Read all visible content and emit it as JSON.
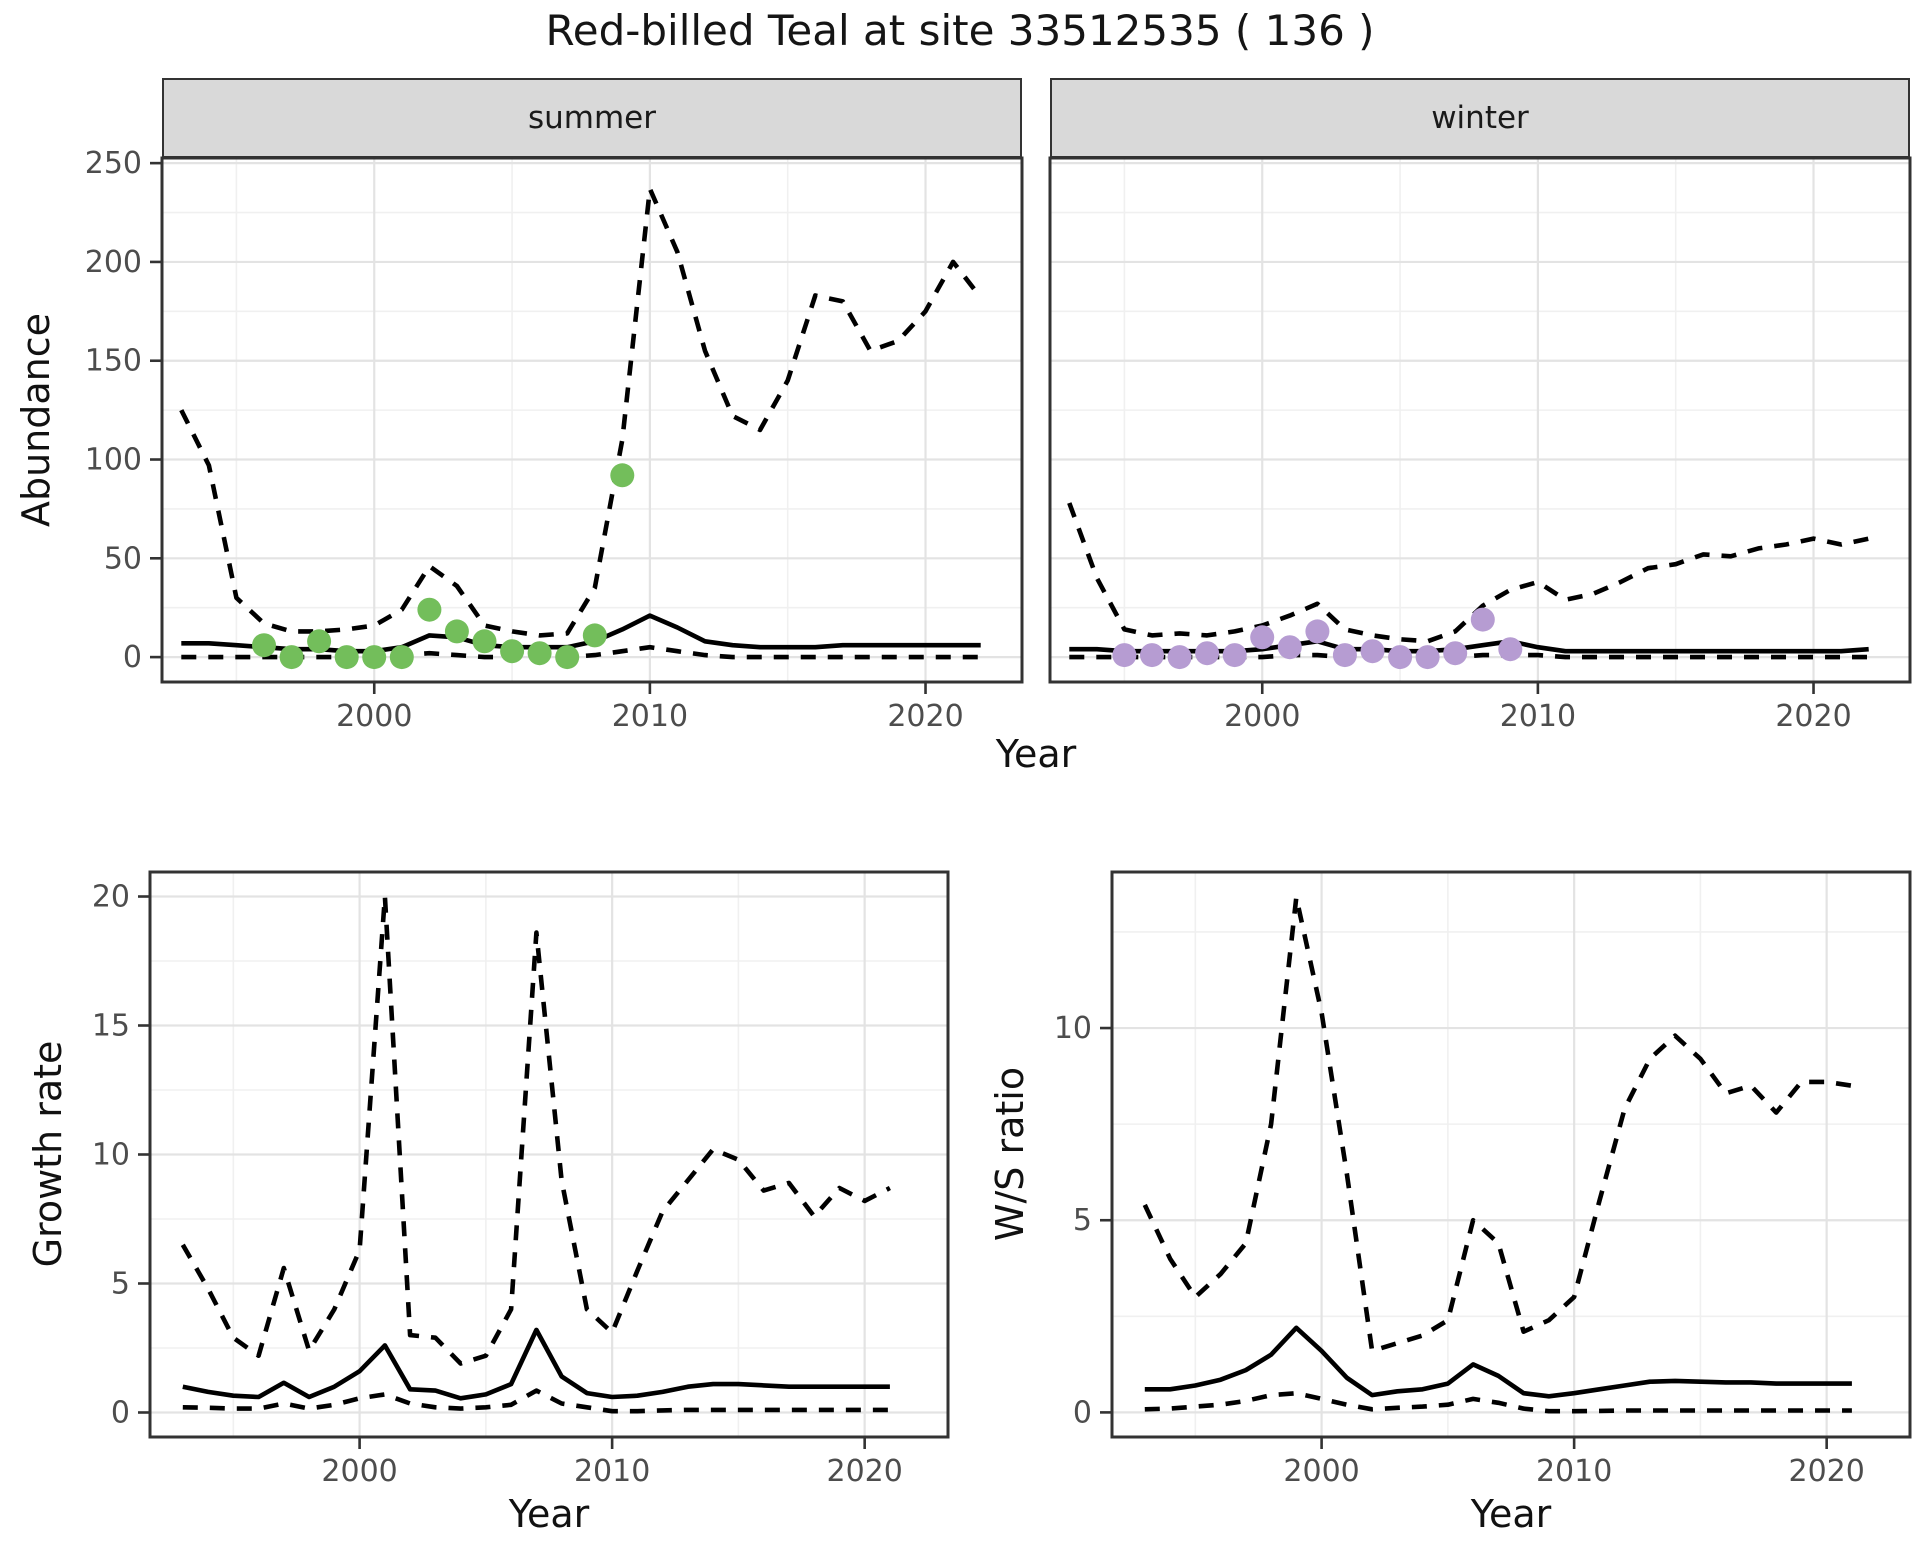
{
  "title": "Red-billed Teal at site 33512535 ( 136 )",
  "top_chart": {
    "facets": [
      "summer",
      "winter"
    ],
    "ylabel": "Abundance",
    "xlabel": "Year"
  },
  "bottom_charts": {
    "left_ylabel": "Growth rate",
    "right_ylabel": "W/S ratio",
    "xlabel": "Year"
  },
  "colors": {
    "summer_points": "#73BE5B",
    "winter_points": "#B69CD2",
    "line": "#000000",
    "strip_bg": "#D9D9D9",
    "panel_border": "#333333",
    "grid_major": "#E3E3E3",
    "grid_minor": "#F0F0F0",
    "axis_text": "#4D4D4D"
  },
  "chart_data": [
    {
      "id": "abundance-summer",
      "type": "line",
      "facet": "summer",
      "title": "Red-billed Teal at site 33512535 ( 136 )",
      "xlabel": "Year",
      "ylabel": "Abundance",
      "ylim": [
        0,
        250
      ],
      "xticks": [
        2000,
        2010,
        2020
      ],
      "xminor": [
        1995,
        2005,
        2015
      ],
      "yticks": [
        0,
        50,
        100,
        150,
        200,
        250
      ],
      "yminor": [
        25,
        75,
        125,
        175,
        225
      ],
      "x_years": [
        1993,
        1994,
        1995,
        1996,
        1997,
        1998,
        1999,
        2000,
        2001,
        2002,
        2003,
        2004,
        2005,
        2006,
        2007,
        2008,
        2009,
        2010,
        2011,
        2012,
        2013,
        2014,
        2015,
        2016,
        2017,
        2018,
        2019,
        2020,
        2021,
        2022
      ],
      "series": [
        {
          "name": "upper_ci",
          "style": "dashed",
          "values": [
            125,
            97,
            30,
            17,
            13,
            13,
            14,
            16,
            24,
            46,
            36,
            16,
            13,
            11,
            12,
            35,
            110,
            237,
            205,
            155,
            122,
            115,
            140,
            183,
            180,
            155,
            160,
            175,
            200,
            182
          ]
        },
        {
          "name": "median",
          "style": "solid",
          "values": [
            7,
            7,
            6,
            5,
            4,
            4,
            3,
            3,
            5,
            11,
            10,
            6,
            5,
            5,
            5,
            8,
            14,
            21,
            15,
            8,
            6,
            5,
            5,
            5,
            6,
            6,
            6,
            6,
            6,
            6
          ]
        },
        {
          "name": "lower_ci",
          "style": "dashed",
          "values": [
            0,
            0,
            0,
            0,
            0,
            0,
            0,
            0,
            1,
            2,
            1,
            0,
            0,
            0,
            0,
            1,
            3,
            5,
            3,
            1,
            0,
            0,
            0,
            0,
            0,
            0,
            0,
            0,
            0,
            0
          ]
        }
      ],
      "points": {
        "name": "observed-summer-counts",
        "color_key": "summer_points",
        "years": [
          1996,
          1997,
          1998,
          1999,
          2000,
          2001,
          2002,
          2003,
          2004,
          2005,
          2006,
          2007,
          2008,
          2009
        ],
        "values": [
          6,
          0,
          8,
          0,
          0,
          0,
          24,
          13,
          8,
          3,
          2,
          0,
          11,
          92
        ]
      }
    },
    {
      "id": "abundance-winter",
      "type": "line",
      "facet": "winter",
      "xlabel": "Year",
      "ylabel": "Abundance",
      "ylim": [
        0,
        250
      ],
      "xticks": [
        2000,
        2010,
        2020
      ],
      "xminor": [
        1995,
        2005,
        2015
      ],
      "yticks": [
        0,
        50,
        100,
        150,
        200,
        250
      ],
      "yminor": [
        25,
        75,
        125,
        175,
        225
      ],
      "x_years": [
        1993,
        1994,
        1995,
        1996,
        1997,
        1998,
        1999,
        2000,
        2001,
        2002,
        2003,
        2004,
        2005,
        2006,
        2007,
        2008,
        2009,
        2010,
        2011,
        2012,
        2013,
        2014,
        2015,
        2016,
        2017,
        2018,
        2019,
        2020,
        2021,
        2022
      ],
      "series": [
        {
          "name": "upper_ci",
          "style": "dashed",
          "values": [
            78,
            40,
            14,
            11,
            12,
            11,
            13,
            16,
            21,
            27,
            14,
            11,
            9,
            8,
            13,
            26,
            34,
            38,
            29,
            32,
            38,
            45,
            47,
            52,
            51,
            55,
            57,
            60,
            57,
            60
          ]
        },
        {
          "name": "median",
          "style": "solid",
          "values": [
            4,
            4,
            3,
            3,
            3,
            3,
            3,
            4,
            6,
            8,
            4,
            4,
            3,
            3,
            4,
            6,
            8,
            5,
            3,
            3,
            3,
            3,
            3,
            3,
            3,
            3,
            3,
            3,
            3,
            4
          ]
        },
        {
          "name": "lower_ci",
          "style": "dashed",
          "values": [
            0,
            0,
            0,
            0,
            0,
            0,
            0,
            0,
            1,
            1,
            0,
            0,
            0,
            0,
            0,
            1,
            1,
            1,
            0,
            0,
            0,
            0,
            0,
            0,
            0,
            0,
            0,
            0,
            0,
            0
          ]
        }
      ],
      "points": {
        "name": "observed-winter-counts",
        "color_key": "winter_points",
        "years": [
          1995,
          1996,
          1997,
          1998,
          1999,
          2000,
          2001,
          2002,
          2003,
          2004,
          2005,
          2006,
          2007,
          2008,
          2009
        ],
        "values": [
          1,
          1,
          0,
          2,
          1,
          10,
          5,
          13,
          1,
          3,
          0,
          0,
          2,
          19,
          4
        ]
      }
    },
    {
      "id": "growth-rate",
      "type": "line",
      "xlabel": "Year",
      "ylabel": "Growth rate",
      "ylim": [
        0,
        20
      ],
      "xticks": [
        2000,
        2010,
        2020
      ],
      "xminor": [
        1995,
        2005,
        2015
      ],
      "yticks": [
        0,
        5,
        10,
        15,
        20
      ],
      "yminor": [
        2.5,
        7.5,
        12.5,
        17.5
      ],
      "x_years": [
        1993,
        1994,
        1995,
        1996,
        1997,
        1998,
        1999,
        2000,
        2001,
        2002,
        2003,
        2004,
        2005,
        2006,
        2007,
        2008,
        2009,
        2010,
        2011,
        2012,
        2013,
        2014,
        2015,
        2016,
        2017,
        2018,
        2019,
        2020,
        2021
      ],
      "series": [
        {
          "name": "upper_ci",
          "style": "dashed",
          "values": [
            6.5,
            4.8,
            2.9,
            2.2,
            5.6,
            2.4,
            4.0,
            6.3,
            20.0,
            3.0,
            2.9,
            1.9,
            2.2,
            4.0,
            18.6,
            9.0,
            4.0,
            3.1,
            5.5,
            7.8,
            9.0,
            10.2,
            9.8,
            8.6,
            8.9,
            7.6,
            8.7,
            8.2,
            8.7
          ]
        },
        {
          "name": "median",
          "style": "solid",
          "values": [
            1.0,
            0.8,
            0.65,
            0.6,
            1.15,
            0.6,
            1.0,
            1.6,
            2.6,
            0.9,
            0.85,
            0.55,
            0.7,
            1.1,
            3.2,
            1.4,
            0.75,
            0.6,
            0.65,
            0.8,
            1.0,
            1.1,
            1.1,
            1.05,
            1.0,
            1.0,
            1.0,
            1.0,
            1.0
          ]
        },
        {
          "name": "lower_ci",
          "style": "dashed",
          "values": [
            0.2,
            0.18,
            0.15,
            0.15,
            0.35,
            0.15,
            0.3,
            0.55,
            0.7,
            0.35,
            0.2,
            0.15,
            0.2,
            0.3,
            0.85,
            0.35,
            0.2,
            0.05,
            0.05,
            0.08,
            0.1,
            0.1,
            0.1,
            0.1,
            0.1,
            0.1,
            0.1,
            0.1,
            0.1
          ]
        }
      ]
    },
    {
      "id": "ws-ratio",
      "type": "line",
      "xlabel": "Year",
      "ylabel": "W/S ratio",
      "ylim": [
        0,
        13.4
      ],
      "xticks": [
        2000,
        2010,
        2020
      ],
      "xminor": [
        1995,
        2005,
        2015
      ],
      "yticks": [
        0,
        5,
        10
      ],
      "yminor": [
        2.5,
        7.5,
        12.5
      ],
      "x_years": [
        1993,
        1994,
        1995,
        1996,
        1997,
        1998,
        1999,
        2000,
        2001,
        2002,
        2003,
        2004,
        2005,
        2006,
        2007,
        2008,
        2009,
        2010,
        2011,
        2012,
        2013,
        2014,
        2015,
        2016,
        2017,
        2018,
        2019,
        2020,
        2021
      ],
      "series": [
        {
          "name": "upper_ci",
          "style": "dashed",
          "values": [
            5.4,
            4.0,
            3.0,
            3.6,
            4.4,
            7.5,
            13.4,
            10.4,
            6.2,
            1.6,
            1.8,
            2.0,
            2.4,
            5.0,
            4.4,
            2.1,
            2.4,
            3.0,
            5.5,
            7.9,
            9.2,
            9.8,
            9.2,
            8.3,
            8.5,
            7.8,
            8.6,
            8.6,
            8.5
          ]
        },
        {
          "name": "median",
          "style": "solid",
          "values": [
            0.6,
            0.6,
            0.7,
            0.85,
            1.1,
            1.5,
            2.2,
            1.6,
            0.9,
            0.45,
            0.55,
            0.6,
            0.75,
            1.25,
            0.95,
            0.5,
            0.42,
            0.5,
            0.6,
            0.7,
            0.8,
            0.82,
            0.8,
            0.78,
            0.78,
            0.75,
            0.75,
            0.75,
            0.75
          ]
        },
        {
          "name": "lower_ci",
          "style": "dashed",
          "values": [
            0.08,
            0.1,
            0.15,
            0.2,
            0.3,
            0.45,
            0.5,
            0.35,
            0.2,
            0.08,
            0.12,
            0.15,
            0.2,
            0.35,
            0.25,
            0.1,
            0.03,
            0.03,
            0.04,
            0.05,
            0.05,
            0.05,
            0.05,
            0.05,
            0.05,
            0.05,
            0.05,
            0.05,
            0.05
          ]
        }
      ]
    }
  ]
}
